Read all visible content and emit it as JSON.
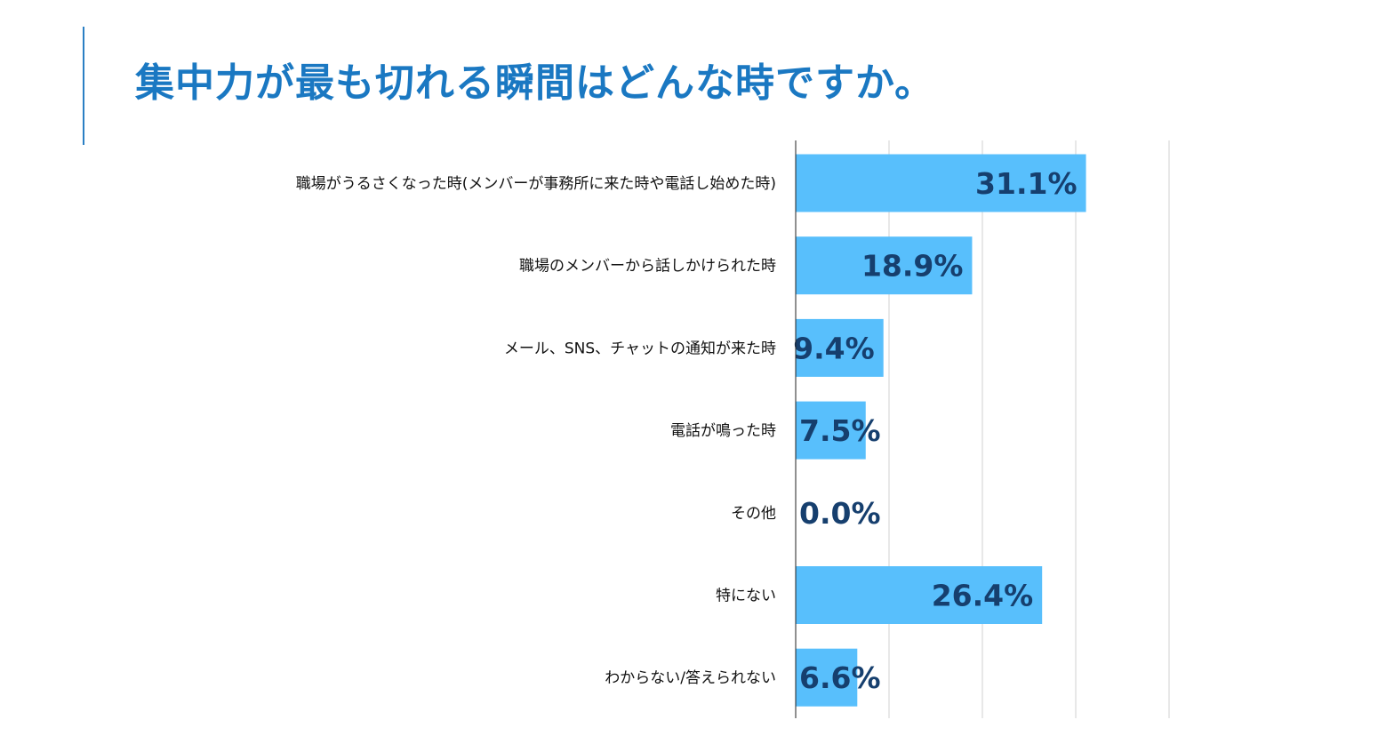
{
  "title": "集中力が最も切れる瞬間はどんな時ですか。",
  "colors": {
    "accent": "#1a78c2",
    "bar": "#58bffc",
    "value_text": "#163f6e",
    "gridline": "#d0d0d0",
    "axis": "#222222"
  },
  "chart_data": {
    "type": "bar",
    "orientation": "horizontal",
    "title": "集中力が最も切れる瞬間はどんな時ですか。",
    "categories": [
      "職場がうるさくなった時(メンバーが事務所に来た時や電話し始めた時)",
      "職場のメンバーから話しかけられた時",
      "メール、SNS、チャットの通知が来た時",
      "電話が鳴った時",
      "その他",
      "特にない",
      "わからない/答えられない"
    ],
    "values": [
      31.1,
      18.9,
      9.4,
      7.5,
      0.0,
      26.4,
      6.6
    ],
    "value_labels": [
      "31.1%",
      "18.9%",
      "9.4%",
      "7.5%",
      "0.0%",
      "26.4%",
      "6.6%"
    ],
    "xlim": [
      0,
      40
    ],
    "grid_step": 10,
    "grid": true,
    "xlabel": "",
    "ylabel": ""
  }
}
